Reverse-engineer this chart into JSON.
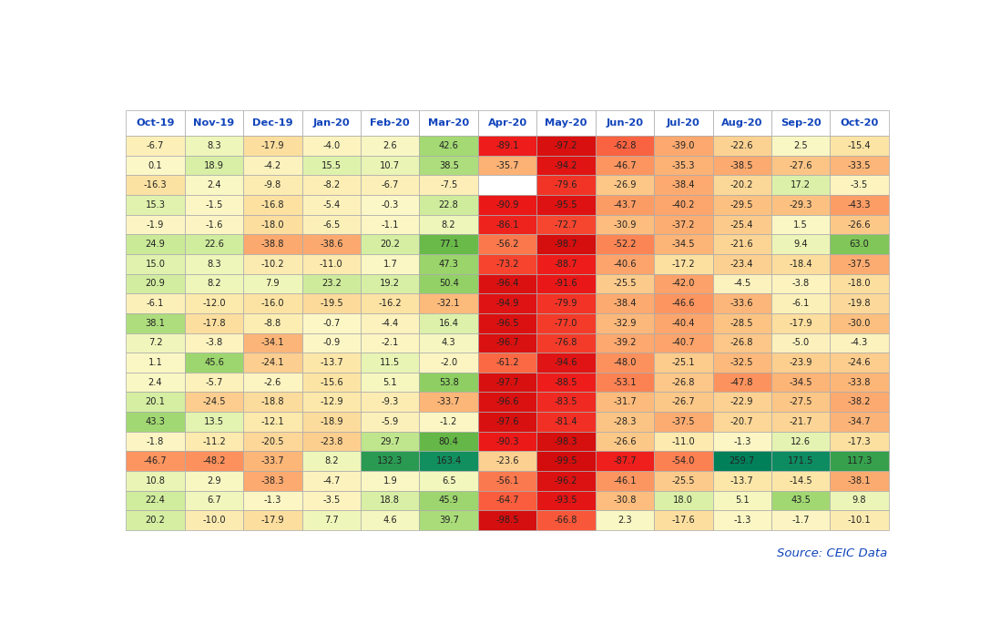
{
  "columns": [
    "Oct-19",
    "Nov-19",
    "Dec-19",
    "Jan-20",
    "Feb-20",
    "Mar-20",
    "Apr-20",
    "May-20",
    "Jun-20",
    "Jul-20",
    "Aug-20",
    "Sep-20",
    "Oct-20"
  ],
  "data": [
    [
      -6.7,
      8.3,
      -17.9,
      -4.0,
      2.6,
      42.6,
      -89.1,
      -97.2,
      -62.8,
      -39.0,
      -22.6,
      2.5,
      -15.4
    ],
    [
      0.1,
      18.9,
      -4.2,
      15.5,
      10.7,
      38.5,
      -35.7,
      -94.2,
      -46.7,
      -35.3,
      -38.5,
      -27.6,
      -33.5
    ],
    [
      -16.3,
      2.4,
      -9.8,
      -8.2,
      -6.7,
      -7.5,
      null,
      -79.6,
      -26.9,
      -38.4,
      -20.2,
      17.2,
      -3.5
    ],
    [
      15.3,
      -1.5,
      -16.8,
      -5.4,
      -0.3,
      22.8,
      -90.9,
      -95.5,
      -43.7,
      -40.2,
      -29.5,
      -29.3,
      -43.3
    ],
    [
      -1.9,
      -1.6,
      -18.0,
      -6.5,
      -1.1,
      8.2,
      -86.1,
      -72.7,
      -30.9,
      -37.2,
      -25.4,
      1.5,
      -26.6
    ],
    [
      24.9,
      22.6,
      -38.8,
      -38.6,
      20.2,
      77.1,
      -56.2,
      -98.7,
      -52.2,
      -34.5,
      -21.6,
      9.4,
      63.0
    ],
    [
      15.0,
      8.3,
      -10.2,
      -11.0,
      1.7,
      47.3,
      -73.2,
      -88.7,
      -40.6,
      -17.2,
      -23.4,
      -18.4,
      -37.5
    ],
    [
      20.9,
      8.2,
      7.9,
      23.2,
      19.2,
      50.4,
      -96.4,
      -91.6,
      -25.5,
      -42.0,
      -4.5,
      -3.8,
      -18.0
    ],
    [
      -6.1,
      -12.0,
      -16.0,
      -19.5,
      -16.2,
      -32.1,
      -94.9,
      -79.9,
      -38.4,
      -46.6,
      -33.6,
      -6.1,
      -19.8
    ],
    [
      38.1,
      -17.8,
      -8.8,
      -0.7,
      -4.4,
      16.4,
      -96.5,
      -77.0,
      -32.9,
      -40.4,
      -28.5,
      -17.9,
      -30.0
    ],
    [
      7.2,
      -3.8,
      -34.1,
      -0.9,
      -2.1,
      4.3,
      -96.7,
      -76.8,
      -39.2,
      -40.7,
      -26.8,
      -5.0,
      -4.3
    ],
    [
      1.1,
      45.6,
      -24.1,
      -13.7,
      11.5,
      -2.0,
      -61.2,
      -94.6,
      -48.0,
      -25.1,
      -32.5,
      -23.9,
      -24.6
    ],
    [
      2.4,
      -5.7,
      -2.6,
      -15.6,
      5.1,
      53.8,
      -97.7,
      -88.5,
      -53.1,
      -26.8,
      -47.8,
      -34.5,
      -33.8
    ],
    [
      20.1,
      -24.5,
      -18.8,
      -12.9,
      -9.3,
      -33.7,
      -96.6,
      -83.5,
      -31.7,
      -26.7,
      -22.9,
      -27.5,
      -38.2
    ],
    [
      43.3,
      13.5,
      -12.1,
      -18.9,
      -5.9,
      -1.2,
      -97.6,
      -81.4,
      -28.3,
      -37.5,
      -20.7,
      -21.7,
      -34.7
    ],
    [
      -1.8,
      -11.2,
      -20.5,
      -23.8,
      29.7,
      80.4,
      -90.3,
      -98.3,
      -26.6,
      -11.0,
      -1.3,
      12.6,
      -17.3
    ],
    [
      -46.7,
      -48.2,
      -33.7,
      8.2,
      132.3,
      163.4,
      -23.6,
      -99.5,
      -87.7,
      -54.0,
      259.7,
      171.5,
      117.3
    ],
    [
      10.8,
      2.9,
      -38.3,
      -4.7,
      1.9,
      6.5,
      -56.1,
      -96.2,
      -46.1,
      -25.5,
      -13.7,
      -14.5,
      -38.1
    ],
    [
      22.4,
      6.7,
      -1.3,
      -3.5,
      18.8,
      45.9,
      -64.7,
      -93.5,
      -30.8,
      18.0,
      5.1,
      43.5,
      9.8
    ],
    [
      20.2,
      -10.0,
      -17.9,
      7.7,
      4.6,
      39.7,
      -98.5,
      -66.8,
      2.3,
      -17.6,
      -1.3,
      -1.7,
      -10.1
    ]
  ],
  "background_color": "#ffffff",
  "source_text": "Source: CEIC Data",
  "figsize": [
    10.87,
    6.96
  ],
  "dpi": 100
}
